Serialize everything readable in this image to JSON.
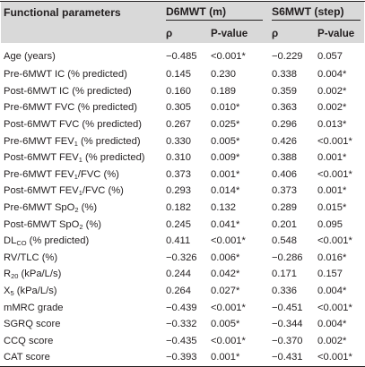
{
  "header": {
    "col0": "Functional parameters",
    "group1": "D6MWT (m)",
    "group2": "S6MWT (step)",
    "sub": [
      "ρ",
      "P-value",
      "ρ",
      "P-value"
    ]
  },
  "rows": [
    {
      "label": "Age (years)",
      "r1": "−0.485",
      "p1": "<0.001*",
      "r2": "−0.229",
      "p2": "0.057"
    },
    {
      "label": "Pre-6MWT IC (% predicted)",
      "r1": "0.145",
      "p1": "0.230",
      "r2": "0.338",
      "p2": "0.004*"
    },
    {
      "label": "Post-6MWT IC (% predicted)",
      "r1": "0.160",
      "p1": "0.189",
      "r2": "0.359",
      "p2": "0.002*"
    },
    {
      "label": "Pre-6MWT FVC (% predicted)",
      "r1": "0.305",
      "p1": "0.010*",
      "r2": "0.363",
      "p2": "0.002*"
    },
    {
      "label": "Post-6MWT FVC (% predicted)",
      "r1": "0.267",
      "p1": "0.025*",
      "r2": "0.296",
      "p2": "0.013*"
    },
    {
      "label_a": "Pre-6MWT FEV",
      "label_sub": "1",
      "label_b": " (% predicted)",
      "r1": "0.330",
      "p1": "0.005*",
      "r2": "0.426",
      "p2": "<0.001*"
    },
    {
      "label_a": "Post-6MWT FEV",
      "label_sub": "1",
      "label_b": " (% predicted)",
      "r1": "0.310",
      "p1": "0.009*",
      "r2": "0.388",
      "p2": "0.001*"
    },
    {
      "label_a": "Pre-6MWT FEV",
      "label_sub": "1",
      "label_b": "/FVC (%)",
      "r1": "0.373",
      "p1": "0.001*",
      "r2": "0.406",
      "p2": "<0.001*"
    },
    {
      "label_a": "Post-6MWT FEV",
      "label_sub": "1",
      "label_b": "/FVC (%)",
      "r1": "0.293",
      "p1": "0.014*",
      "r2": "0.373",
      "p2": "0.001*"
    },
    {
      "label_a": "Pre-6MWT SpO",
      "label_sub": "2",
      "label_b": " (%)",
      "r1": "0.182",
      "p1": "0.132",
      "r2": "0.289",
      "p2": "0.015*"
    },
    {
      "label_a": "Post-6MWT SpO",
      "label_sub": "2",
      "label_b": " (%)",
      "r1": "0.245",
      "p1": "0.041*",
      "r2": "0.201",
      "p2": "0.095"
    },
    {
      "label_a": "DL",
      "label_sub": "CO",
      "label_b": " (% predicted)",
      "r1": "0.411",
      "p1": "<0.001*",
      "r2": "0.548",
      "p2": "<0.001*"
    },
    {
      "label": "RV/TLC (%)",
      "r1": "−0.326",
      "p1": "0.006*",
      "r2": "−0.286",
      "p2": "0.016*"
    },
    {
      "label_a": "R",
      "label_sub": "20",
      "label_b": " (kPa/L/s)",
      "r1": "0.244",
      "p1": "0.042*",
      "r2": "0.171",
      "p2": "0.157"
    },
    {
      "label_a": "X",
      "label_sub": "5",
      "label_b": " (kPa/L/s)",
      "r1": "0.264",
      "p1": "0.027*",
      "r2": "0.336",
      "p2": "0.004*"
    },
    {
      "label": "mMRC grade",
      "r1": "−0.439",
      "p1": "<0.001*",
      "r2": "−0.451",
      "p2": "<0.001*"
    },
    {
      "label": "SGRQ score",
      "r1": "−0.332",
      "p1": "0.005*",
      "r2": "−0.344",
      "p2": "0.004*"
    },
    {
      "label": "CCQ score",
      "r1": "−0.435",
      "p1": "<0.001*",
      "r2": "−0.370",
      "p2": "0.002*"
    },
    {
      "label": "CAT score",
      "r1": "−0.393",
      "p1": "0.001*",
      "r2": "−0.431",
      "p2": "<0.001*"
    }
  ]
}
